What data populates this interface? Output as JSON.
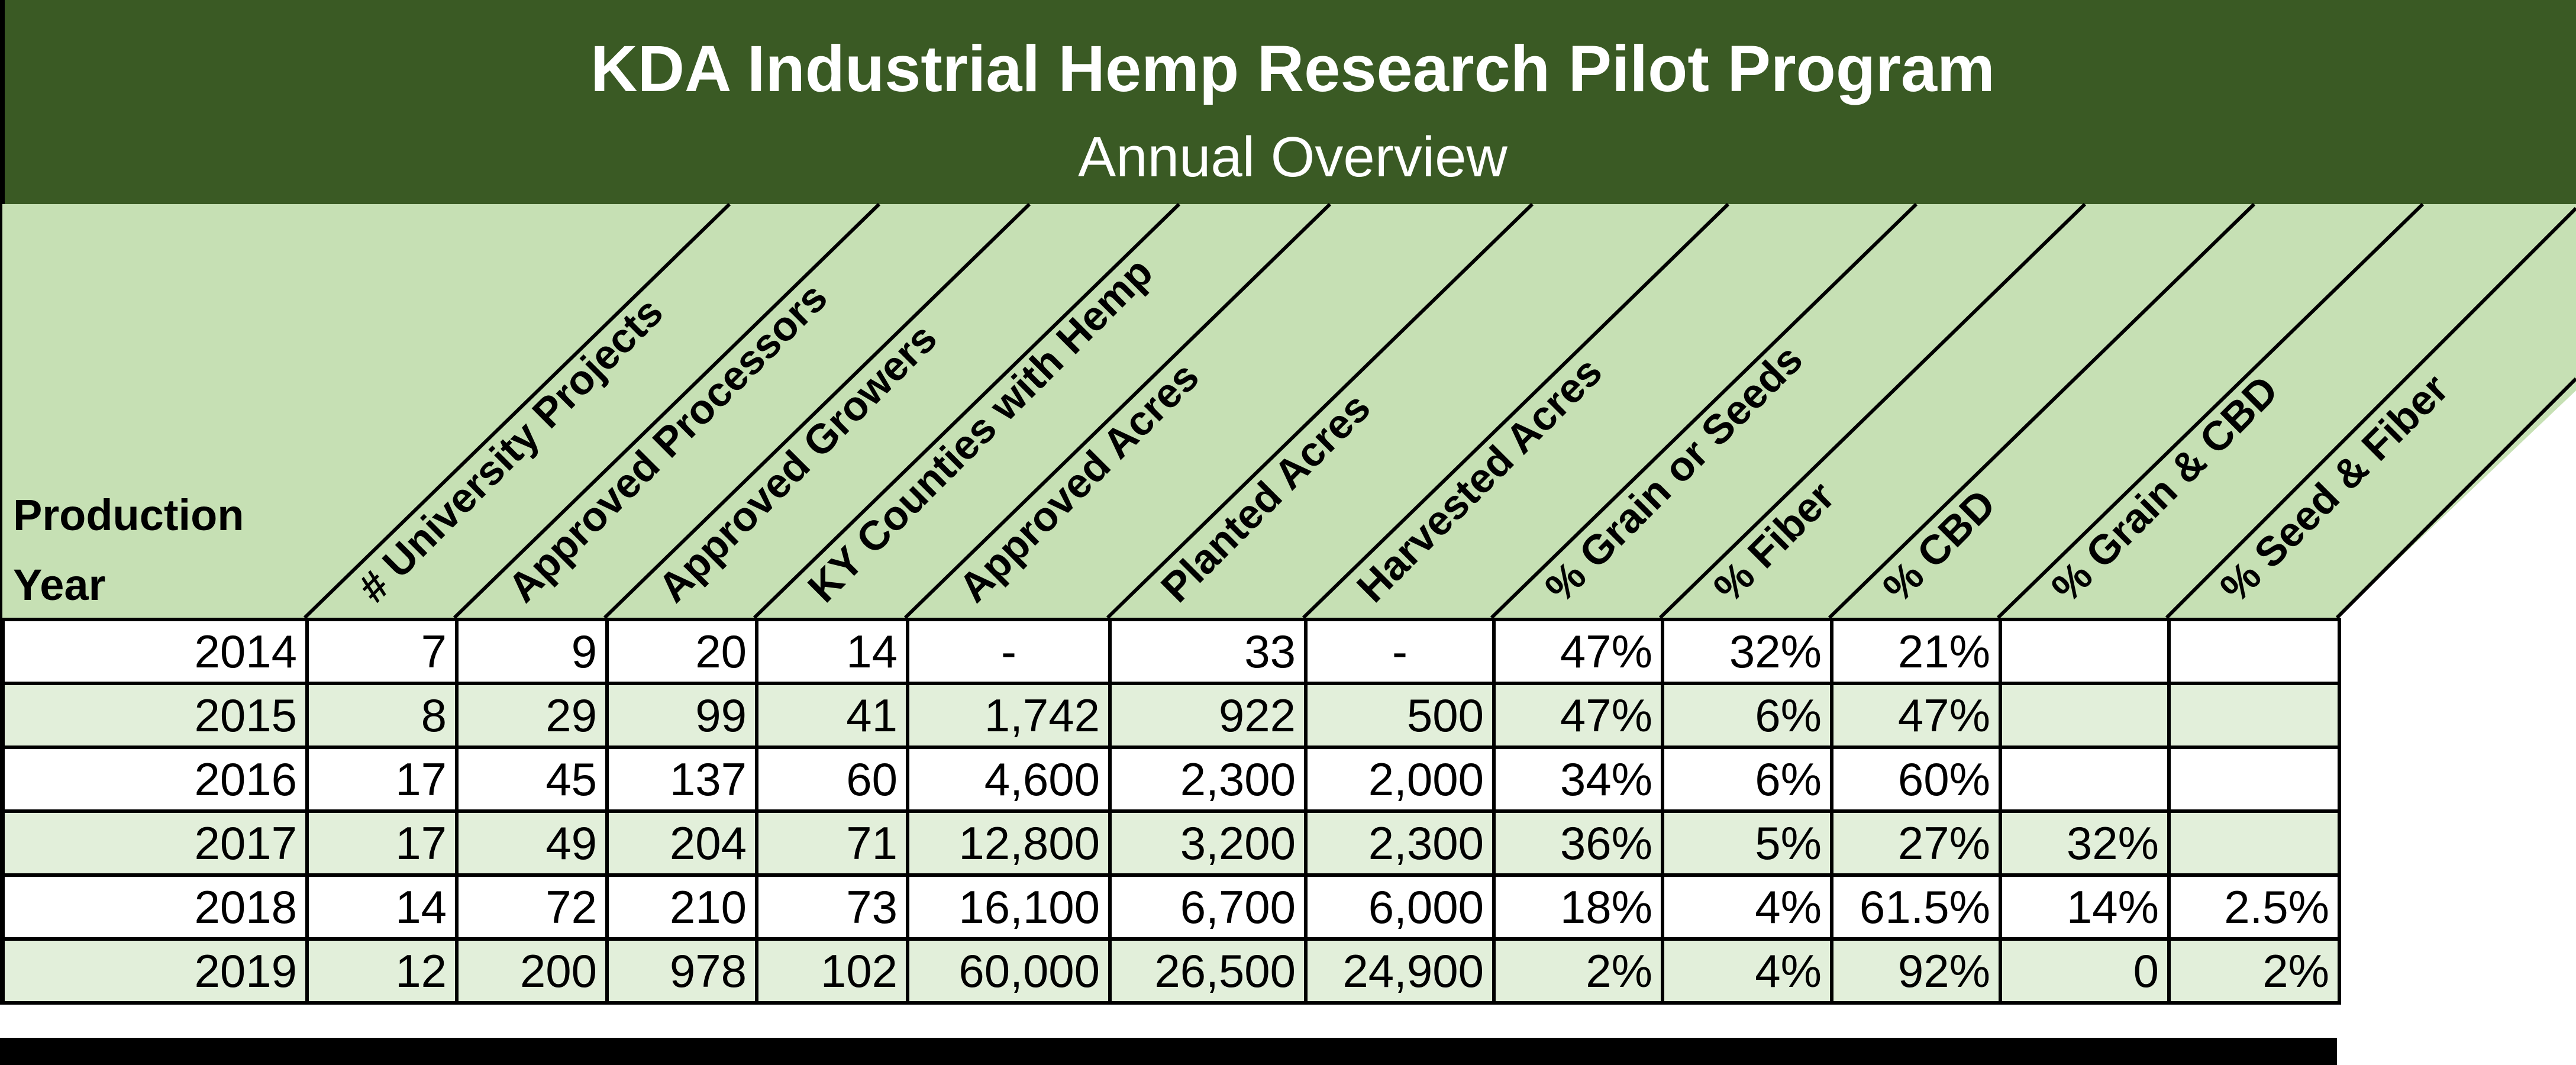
{
  "title": "KDA Industrial Hemp Research Pilot Program",
  "subtitle": "Annual Overview",
  "row_header": {
    "line1": "Production",
    "line2": "Year"
  },
  "columns": [
    "# University Projects",
    "Approved Processors",
    "Approved Growers",
    "KY Counties with Hemp",
    "Approved Acres",
    "Planted Acres",
    "Harvested Acres",
    "% Grain or Seeds",
    "% Fiber",
    "% CBD",
    "% Grain & CBD",
    "% Seed & Fiber"
  ],
  "rows": [
    {
      "year": "2014",
      "cells": [
        "7",
        "9",
        "20",
        "14",
        "-",
        "33",
        "-",
        "47%",
        "32%",
        "21%",
        "",
        ""
      ]
    },
    {
      "year": "2015",
      "cells": [
        "8",
        "29",
        "99",
        "41",
        "1,742",
        "922",
        "500",
        "47%",
        "6%",
        "47%",
        "",
        ""
      ]
    },
    {
      "year": "2016",
      "cells": [
        "17",
        "45",
        "137",
        "60",
        "4,600",
        "2,300",
        "2,000",
        "34%",
        "6%",
        "60%",
        "",
        ""
      ]
    },
    {
      "year": "2017",
      "cells": [
        "17",
        "49",
        "204",
        "71",
        "12,800",
        "3,200",
        "2,300",
        "36%",
        "5%",
        "27%",
        "32%",
        ""
      ]
    },
    {
      "year": "2018",
      "cells": [
        "14",
        "72",
        "210",
        "73",
        "16,100",
        "6,700",
        "6,000",
        "18%",
        "4%",
        "61.5%",
        "14%",
        "2.5%"
      ]
    },
    {
      "year": "2019",
      "cells": [
        "12",
        "200",
        "978",
        "102",
        "60,000",
        "26,500",
        "24,900",
        "2%",
        "4%",
        "92%",
        "0",
        "2%"
      ]
    }
  ],
  "colors": {
    "title_band": "#3a5a24",
    "header_band": "#c6e0b4",
    "row_alt": "#e2efda",
    "row_base": "#ffffff"
  }
}
